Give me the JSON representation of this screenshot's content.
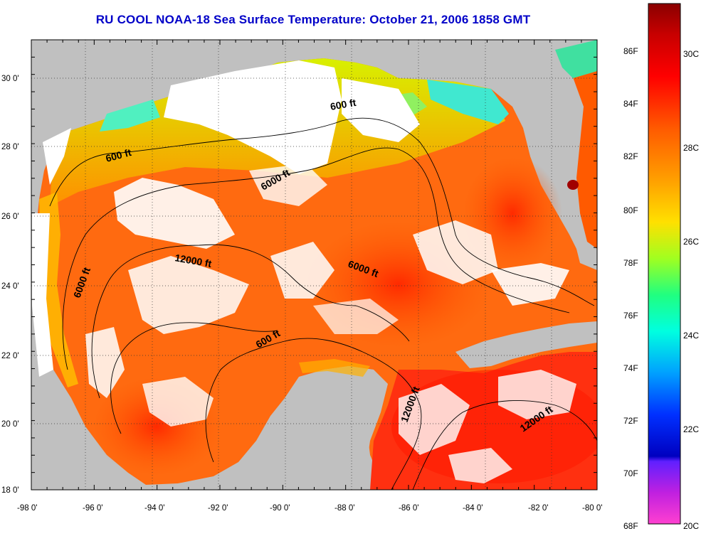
{
  "title": "RU COOL  NOAA-18  Sea Surface Temperature:  October 21, 2006 1858 GMT",
  "axes": {
    "lon_labels": [
      "-98 0'",
      "-96 0'",
      "-94 0'",
      "-92 0'",
      "-90 0'",
      "-88 0'",
      "-86 0'",
      "-84 0'",
      "-82 0'",
      "-80 0'"
    ],
    "lat_labels": [
      "30 0'",
      "28 0'",
      "26 0'",
      "24 0'",
      "22 0'",
      "20 0'",
      "18 0'"
    ],
    "grid": "dotted"
  },
  "contour_labels": [
    "600 ft",
    "600 ft",
    "6000 ft",
    "12000 ft",
    "6000 ft",
    "6000 ft",
    "600 ft",
    "12000 ft",
    "12000 ft"
  ],
  "colorbar": {
    "fahrenheit": [
      "86F",
      "84F",
      "82F",
      "80F",
      "78F",
      "76F",
      "74F",
      "72F",
      "70F",
      "68F"
    ],
    "celsius": [
      "30C",
      "28C",
      "26C",
      "24C",
      "22C",
      "20C"
    ]
  },
  "colors": {
    "land": "#c0c0c0",
    "cloud": "#ffffff",
    "warm": "#ff4000",
    "title": "#0000c8"
  }
}
